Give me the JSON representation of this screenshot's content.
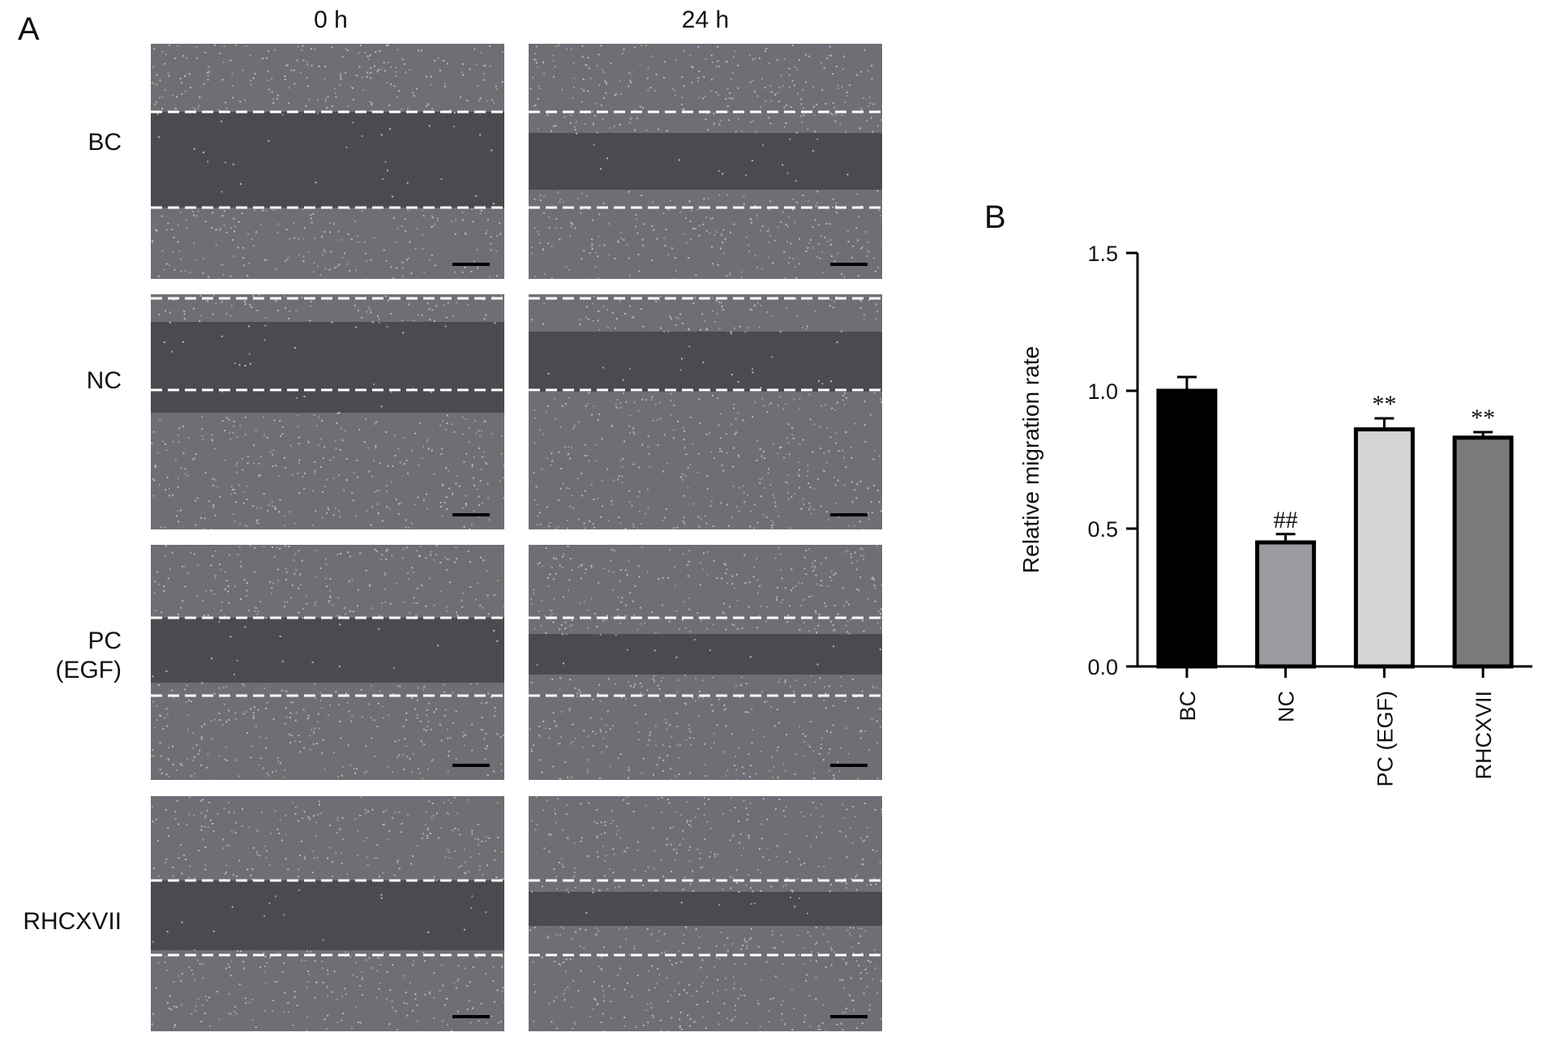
{
  "panel_a": {
    "label": "A",
    "columns": [
      "0 h",
      "24 h"
    ],
    "rows": [
      "BC",
      "NC",
      "PC\n(EGF)",
      "RHCXVII"
    ]
  },
  "panel_b": {
    "label": "B"
  },
  "chart_data": {
    "type": "bar",
    "categories": [
      "BC",
      "NC",
      "PC (EGF)",
      "RHCXVII"
    ],
    "values": [
      1.0,
      0.45,
      0.86,
      0.83
    ],
    "errors": [
      0.05,
      0.03,
      0.04,
      0.02
    ],
    "annotations": [
      "",
      "##",
      "**",
      "**"
    ],
    "colors": [
      "#000000",
      "#9a9a9f",
      "#d4d4d4",
      "#7a7a7a"
    ],
    "title": "",
    "xlabel": "",
    "ylabel": "Relative migration rate",
    "ylim": [
      0,
      1.5
    ],
    "yticks": [
      0.0,
      0.5,
      1.0,
      1.5
    ],
    "ytick_labels": [
      "0.0",
      "0.5",
      "1.0",
      "1.5"
    ],
    "legend": "none",
    "grid": false
  }
}
